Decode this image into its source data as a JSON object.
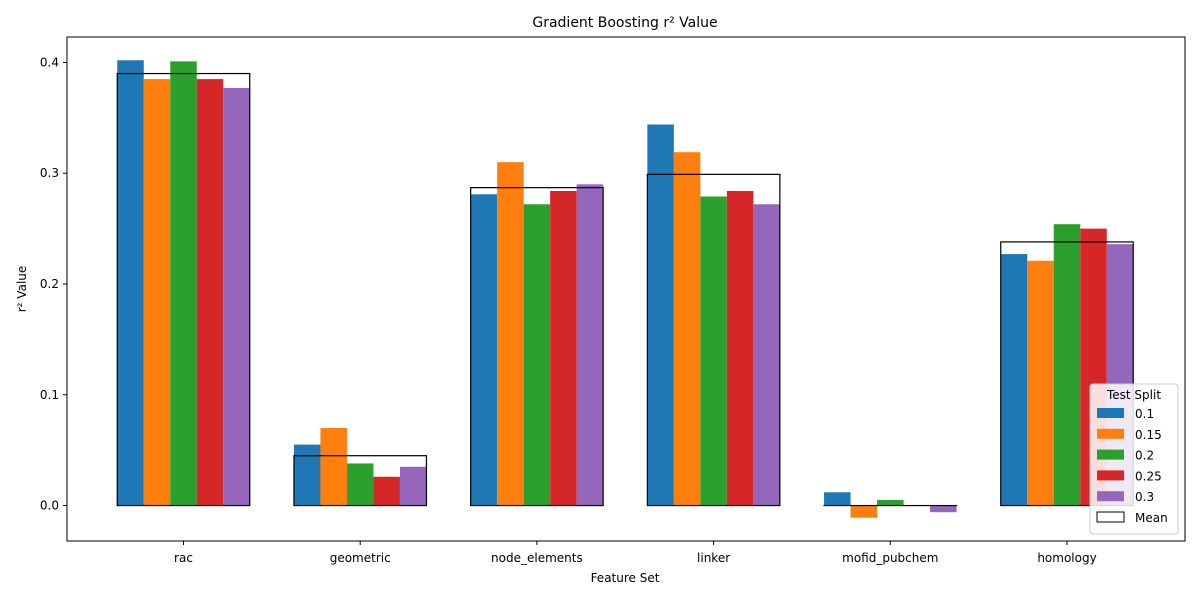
{
  "chart_data": {
    "type": "bar",
    "title": "Gradient Boosting r² Value",
    "xlabel": "Feature Set",
    "ylabel": "r² Value",
    "ylim": [
      -0.032,
      0.423
    ],
    "yticks": [
      0.0,
      0.1,
      0.2,
      0.3,
      0.4
    ],
    "ytick_labels": [
      "0.0",
      "0.1",
      "0.2",
      "0.3",
      "0.4"
    ],
    "categories": [
      "rac",
      "geometric",
      "node_elements",
      "linker",
      "mofid_pubchem",
      "homology"
    ],
    "legend": {
      "title": "Test Split",
      "placement": "lower-right",
      "mean_label": "Mean"
    },
    "series": [
      {
        "name": "0.1",
        "color": "#1f77b4",
        "values": [
          0.402,
          0.055,
          0.281,
          0.344,
          0.012,
          0.227
        ]
      },
      {
        "name": "0.15",
        "color": "#ff7f0e",
        "values": [
          0.385,
          0.07,
          0.31,
          0.319,
          -0.011,
          0.221
        ]
      },
      {
        "name": "0.2",
        "color": "#2ca02c",
        "values": [
          0.401,
          0.038,
          0.272,
          0.279,
          0.005,
          0.254
        ]
      },
      {
        "name": "0.25",
        "color": "#d62728",
        "values": [
          0.385,
          0.026,
          0.284,
          0.284,
          0.0,
          0.25
        ]
      },
      {
        "name": "0.3",
        "color": "#9467bd",
        "values": [
          0.377,
          0.035,
          0.29,
          0.272,
          -0.006,
          0.236
        ]
      }
    ],
    "mean": [
      0.39,
      0.045,
      0.287,
      0.299,
      0.0,
      0.238
    ],
    "grid": false
  }
}
